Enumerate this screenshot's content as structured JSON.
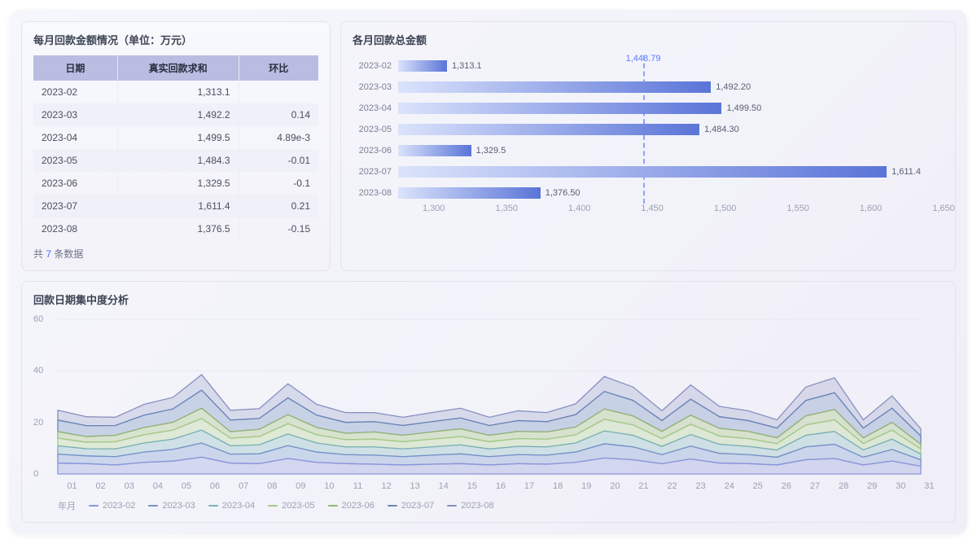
{
  "colors": {
    "panel_border": "#e2e3ee",
    "header_bg": "#b8bde1",
    "text_primary": "#3d4455",
    "text_secondary": "#7a8096",
    "text_muted": "#9ba0b3",
    "accent": "#4a6cf7",
    "bar_gradient_from": "#dbe3fb",
    "bar_gradient_to": "#5a74d8",
    "avg_line": "#8aa3ff"
  },
  "table": {
    "title": "每月回款金额情况（单位：万元）",
    "columns": [
      "日期",
      "真实回款求和",
      "环比"
    ],
    "rows": [
      {
        "date": "2023-02",
        "sum": "1,313.1",
        "mom": ""
      },
      {
        "date": "2023-03",
        "sum": "1,492.2",
        "mom": "0.14"
      },
      {
        "date": "2023-04",
        "sum": "1,499.5",
        "mom": "4.89e-3"
      },
      {
        "date": "2023-05",
        "sum": "1,484.3",
        "mom": "-0.01"
      },
      {
        "date": "2023-06",
        "sum": "1,329.5",
        "mom": "-0.1"
      },
      {
        "date": "2023-07",
        "sum": "1,611.4",
        "mom": "0.21"
      },
      {
        "date": "2023-08",
        "sum": "1,376.5",
        "mom": "-0.15"
      }
    ],
    "footer_prefix": "共 ",
    "footer_count": "7",
    "footer_suffix": " 条数据"
  },
  "bar": {
    "title": "各月回款总金额",
    "type": "bar-horizontal",
    "x_min": 1280,
    "x_max": 1650,
    "ticks": [
      1300,
      1350,
      1400,
      1450,
      1500,
      1550,
      1600,
      1650
    ],
    "avg_value": 1443.79,
    "avg_label": "1,443.79",
    "rows": [
      {
        "cat": "2023-02",
        "value": 1313.1,
        "label": "1,313.1"
      },
      {
        "cat": "2023-03",
        "value": 1492.2,
        "label": "1,492.20"
      },
      {
        "cat": "2023-04",
        "value": 1499.5,
        "label": "1,499.50"
      },
      {
        "cat": "2023-05",
        "value": 1484.3,
        "label": "1,484.30"
      },
      {
        "cat": "2023-06",
        "value": 1329.5,
        "label": "1,329.5"
      },
      {
        "cat": "2023-07",
        "value": 1611.4,
        "label": "1,611.4"
      },
      {
        "cat": "2023-08",
        "value": 1376.5,
        "label": "1,376.50"
      }
    ]
  },
  "area": {
    "title": "回款日期集中度分析",
    "type": "stacked-area",
    "y_min": 0,
    "y_max": 60,
    "y_ticks": [
      0,
      20,
      40,
      60
    ],
    "x_labels": [
      "01",
      "02",
      "03",
      "04",
      "05",
      "06",
      "07",
      "08",
      "09",
      "10",
      "11",
      "12",
      "13",
      "14",
      "15",
      "16",
      "17",
      "18",
      "19",
      "20",
      "21",
      "22",
      "23",
      "24",
      "25",
      "26",
      "27",
      "28",
      "29",
      "30",
      "31"
    ],
    "legend_prefix": "年月",
    "series": [
      {
        "name": "2023-02",
        "color": "#8b96d9",
        "fill": "#b9c0e8",
        "values": [
          4.2,
          4.0,
          3.5,
          4.5,
          5.0,
          6.5,
          4.2,
          4.0,
          6.0,
          4.5,
          4.0,
          3.8,
          3.5,
          3.8,
          4.0,
          3.5,
          4.0,
          3.8,
          4.5,
          6.2,
          5.5,
          4.0,
          5.8,
          4.2,
          4.0,
          3.5,
          5.5,
          6.0,
          3.5,
          5.0,
          3.0
        ]
      },
      {
        "name": "2023-03",
        "color": "#7891c9",
        "fill": "#a9bde0",
        "values": [
          3.5,
          3.0,
          3.2,
          4.0,
          4.5,
          5.5,
          3.5,
          3.8,
          5.0,
          4.0,
          3.5,
          3.5,
          3.2,
          3.5,
          3.8,
          3.2,
          3.5,
          3.5,
          4.0,
          5.5,
          5.0,
          3.5,
          5.0,
          3.8,
          3.5,
          3.0,
          5.0,
          5.5,
          3.0,
          4.5,
          2.5
        ]
      },
      {
        "name": "2023-04",
        "color": "#7ab0b8",
        "fill": "#b0d2d6",
        "values": [
          3.2,
          2.8,
          3.0,
          3.5,
          4.0,
          5.0,
          3.2,
          3.5,
          4.5,
          3.5,
          3.0,
          3.2,
          3.0,
          3.2,
          3.5,
          3.0,
          3.2,
          3.2,
          3.5,
          5.0,
          4.5,
          3.2,
          4.5,
          3.5,
          3.2,
          2.8,
          4.5,
          5.0,
          2.8,
          4.0,
          2.2
        ]
      },
      {
        "name": "2023-05",
        "color": "#a6c989",
        "fill": "#cce0ba",
        "values": [
          3.0,
          2.5,
          2.8,
          3.2,
          3.5,
          4.5,
          3.0,
          3.2,
          4.0,
          3.2,
          2.8,
          3.0,
          2.8,
          3.0,
          3.2,
          2.8,
          3.0,
          3.0,
          3.2,
          4.5,
          4.0,
          3.0,
          4.0,
          3.2,
          3.0,
          2.5,
          4.0,
          4.5,
          2.5,
          3.5,
          2.0
        ]
      },
      {
        "name": "2023-06",
        "color": "#95b574",
        "fill": "#c1d6ac",
        "values": [
          2.5,
          2.2,
          2.5,
          2.8,
          3.0,
          4.0,
          2.5,
          2.8,
          3.5,
          2.8,
          2.5,
          2.8,
          2.5,
          2.8,
          3.0,
          2.5,
          2.8,
          2.8,
          3.0,
          4.0,
          3.5,
          2.8,
          3.5,
          3.0,
          2.8,
          2.2,
          3.5,
          4.0,
          2.2,
          3.0,
          1.8
        ]
      },
      {
        "name": "2023-07",
        "color": "#6a85b8",
        "fill": "#a4b6d6",
        "values": [
          4.5,
          4.2,
          3.8,
          4.8,
          5.2,
          7.0,
          4.5,
          4.2,
          6.5,
          4.8,
          4.2,
          4.0,
          3.8,
          4.0,
          4.2,
          3.8,
          4.2,
          4.0,
          4.8,
          6.8,
          6.0,
          4.2,
          6.2,
          4.5,
          4.2,
          3.8,
          6.0,
          6.5,
          3.8,
          5.5,
          3.2
        ]
      },
      {
        "name": "2023-08",
        "color": "#8890c0",
        "fill": "#bfc4de",
        "values": [
          3.8,
          3.5,
          3.2,
          4.2,
          4.5,
          6.0,
          3.8,
          3.8,
          5.5,
          4.2,
          3.8,
          3.5,
          3.2,
          3.5,
          3.8,
          3.2,
          3.8,
          3.5,
          4.2,
          5.8,
          5.2,
          3.8,
          5.5,
          4.0,
          3.8,
          3.2,
          5.2,
          5.8,
          3.2,
          4.8,
          2.8
        ]
      }
    ]
  }
}
